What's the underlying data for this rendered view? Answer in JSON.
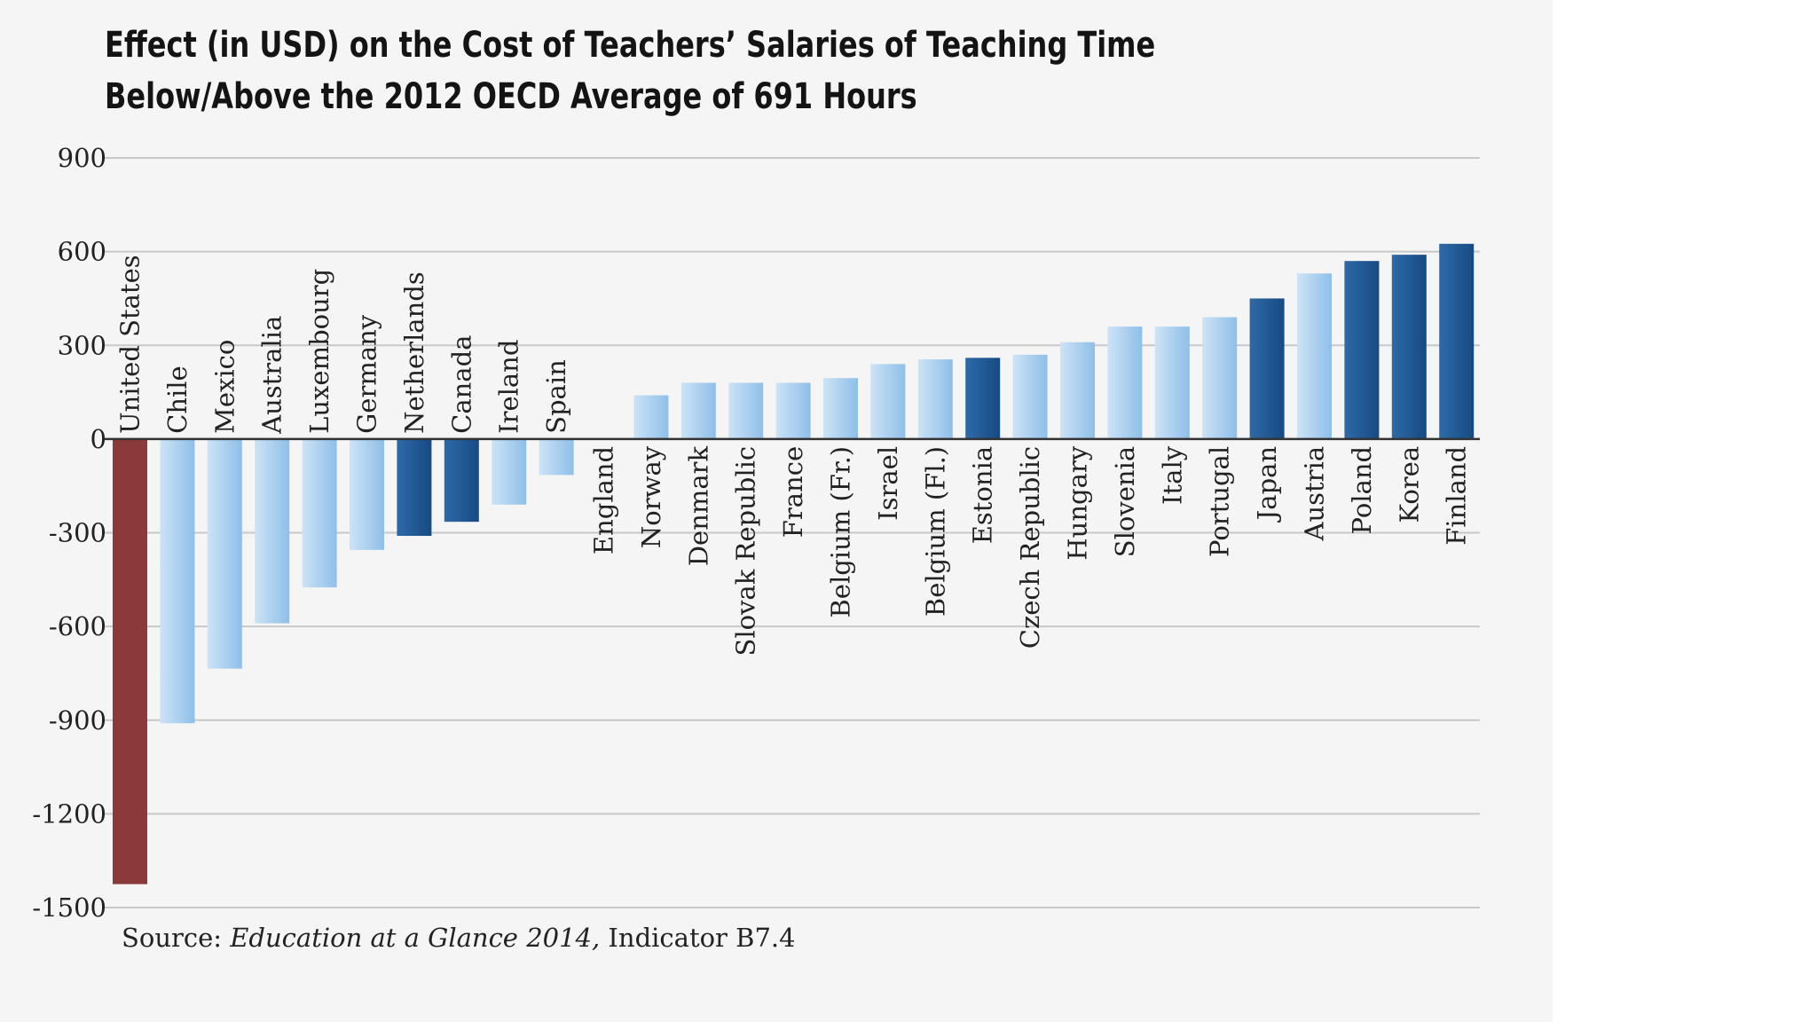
{
  "chart_data": {
    "type": "bar",
    "title": [
      "Effect (in USD) on the Cost of Teachers’ Salaries of Teaching Time",
      "Below/Above the 2012 OECD Average of 691 Hours"
    ],
    "xlabel": "",
    "ylabel": "",
    "ylim": [
      -1500,
      900
    ],
    "yticks": [
      900,
      600,
      300,
      0,
      -300,
      -600,
      -900,
      -1200,
      -1500
    ],
    "grid": true,
    "legend": "none",
    "categories": [
      "United States",
      "Chile",
      "Mexico",
      "Australia",
      "Luxembourg",
      "Germany",
      "Netherlands",
      "Canada",
      "Ireland",
      "Spain",
      "England",
      "Norway",
      "Denmark",
      "Slovak Republic",
      "France",
      "Belgium (Fr.)",
      "Israel",
      "Belgium (Fl.)",
      "Estonia",
      "Czech Republic",
      "Hungary",
      "Slovenia",
      "Italy",
      "Portugal",
      "Japan",
      "Austria",
      "Poland",
      "Korea",
      "Finland"
    ],
    "values": [
      -1425,
      -910,
      -735,
      -590,
      -475,
      -355,
      -310,
      -265,
      -210,
      -115,
      0,
      140,
      180,
      180,
      180,
      195,
      240,
      255,
      260,
      270,
      310,
      360,
      360,
      390,
      450,
      530,
      570,
      590,
      625
    ],
    "bar_tone": [
      "highlight",
      "light",
      "light",
      "light",
      "light",
      "light",
      "dark",
      "dark",
      "light",
      "light",
      "light",
      "light",
      "light",
      "light",
      "light",
      "light",
      "light",
      "light",
      "dark",
      "light",
      "light",
      "light",
      "light",
      "light",
      "dark",
      "light",
      "dark",
      "dark",
      "dark"
    ],
    "colors": {
      "highlight": "#8b3a3a",
      "light_top": "#cde3f6",
      "light_bottom": "#8ebfe9",
      "dark_top": "#2e6aa8",
      "dark_bottom": "#174a82",
      "grid": "#c8c8c8",
      "zero_line": "#333333"
    }
  },
  "source": {
    "prefix": "Source: ",
    "publication": "Education at a Glance 2014,",
    "suffix": " Indicator B7.4"
  }
}
